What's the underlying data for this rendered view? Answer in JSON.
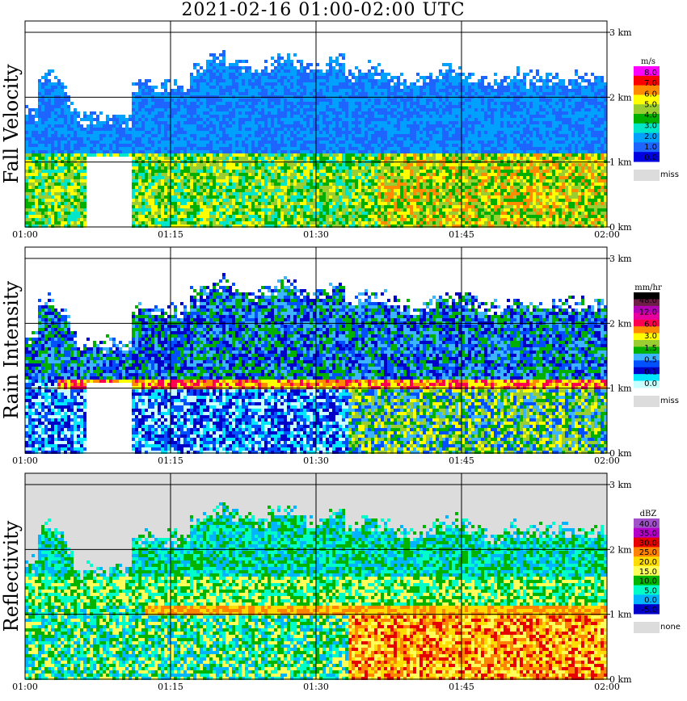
{
  "title": "2021-02-16   01:00-02:00 UTC",
  "x_ticks": [
    "01:00",
    "01:15",
    "01:30",
    "01:45",
    "02:00"
  ],
  "y_ticks": [
    "0 km",
    "1 km",
    "2 km",
    "3 km"
  ],
  "panels": [
    {
      "key": "fv",
      "label": "Fall Velocity",
      "unit": "m/s",
      "levels": [
        "8.0",
        "7.0",
        "6.0",
        "5.0",
        "4.0",
        "3.0",
        "2.0",
        "1.0",
        "0.0"
      ],
      "colors": [
        "#ff00ff",
        "#ff0000",
        "#ff8c00",
        "#ffff00",
        "#9acd32",
        "#00b000",
        "#00e6c8",
        "#00a0ff",
        "#1e64ff",
        "#0000e0"
      ],
      "missing_label": "miss",
      "missing_color": "#dcdcdc"
    },
    {
      "key": "rr",
      "label": "Rain Intensity",
      "unit": "mm/hr",
      "levels": [
        "48.0",
        "12.0",
        "6.0",
        "3.0",
        "1.5",
        "0.5",
        "0.1",
        "0.0"
      ],
      "colors": [
        "#000000",
        "#6e1e46",
        "#b400b4",
        "#e600a0",
        "#ff0050",
        "#ff8c00",
        "#ffff00",
        "#9acd32",
        "#00b000",
        "#3cb4ff",
        "#0050ff",
        "#0000c8",
        "#00e6ff",
        "#c8ffff"
      ],
      "missing_label": "miss",
      "missing_color": "#dcdcdc"
    },
    {
      "key": "dbz",
      "label": "Reflectivity",
      "unit": "dBZ",
      "levels": [
        "40.0",
        "35.0",
        "30.0",
        "25.0",
        "20.0",
        "15.0",
        "10.0",
        "5.0",
        "0.0",
        "-5.0"
      ],
      "colors": [
        "#a050c8",
        "#b400c8",
        "#e60000",
        "#ff8200",
        "#ffdc00",
        "#ffff5a",
        "#00b400",
        "#00ffc8",
        "#00b4ff",
        "#0000c8"
      ],
      "missing_label": "none",
      "missing_color": "#dcdcdc"
    }
  ]
}
